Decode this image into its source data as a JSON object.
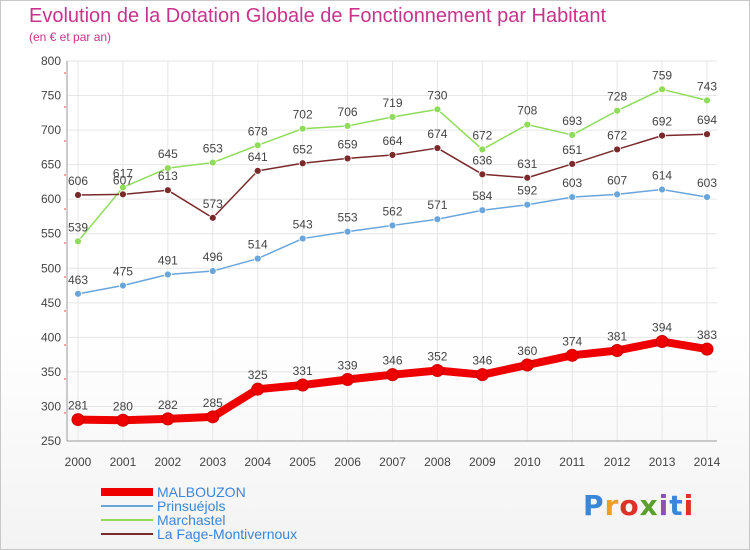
{
  "header": {
    "title": "Evolution de la Dotation Globale de Fonctionnement par Habitant",
    "subtitle": "(en € et par an)"
  },
  "colors": {
    "title": "#c8338b",
    "axis": "#9a9a9a",
    "grid": "#e6e6e6",
    "legend_text": "#3a86d8"
  },
  "logo": {
    "text": "Proxiti",
    "letter_colors": [
      "#3a86d8",
      "#f0a020",
      "#e0302a",
      "#5aa02c",
      "#8a4fb8",
      "#3a86d8",
      "#e0302a"
    ]
  },
  "chart_data": {
    "type": "line",
    "title": "Evolution de la Dotation Globale de Fonctionnement par Habitant",
    "subtitle": "(en € et par an)",
    "x": [
      2000,
      2001,
      2002,
      2003,
      2004,
      2005,
      2006,
      2007,
      2008,
      2009,
      2010,
      2011,
      2012,
      2013,
      2014
    ],
    "ylim": [
      250,
      800
    ],
    "yticks": [
      250,
      300,
      350,
      400,
      450,
      500,
      550,
      600,
      650,
      700,
      750,
      800
    ],
    "grid": true,
    "legend_position": "bottom-left",
    "series": [
      {
        "name": "MALBOUZON",
        "color": "#ee0000",
        "values": [
          281,
          280,
          282,
          285,
          325,
          331,
          339,
          346,
          352,
          346,
          360,
          374,
          381,
          394,
          383
        ]
      },
      {
        "name": "Prinsuéjols",
        "color": "#6aa6dc",
        "values": [
          463,
          475,
          491,
          496,
          514,
          543,
          553,
          562,
          571,
          584,
          592,
          603,
          607,
          614,
          603
        ]
      },
      {
        "name": "Marchastel",
        "color": "#8fdb5a",
        "values": [
          539,
          617,
          645,
          653,
          678,
          702,
          706,
          719,
          730,
          672,
          708,
          693,
          728,
          759,
          743
        ]
      },
      {
        "name": "La Fage-Montivernoux",
        "color": "#7a2a2a",
        "values": [
          606,
          607,
          613,
          573,
          641,
          652,
          659,
          664,
          674,
          636,
          631,
          651,
          672,
          692,
          694
        ]
      }
    ]
  }
}
